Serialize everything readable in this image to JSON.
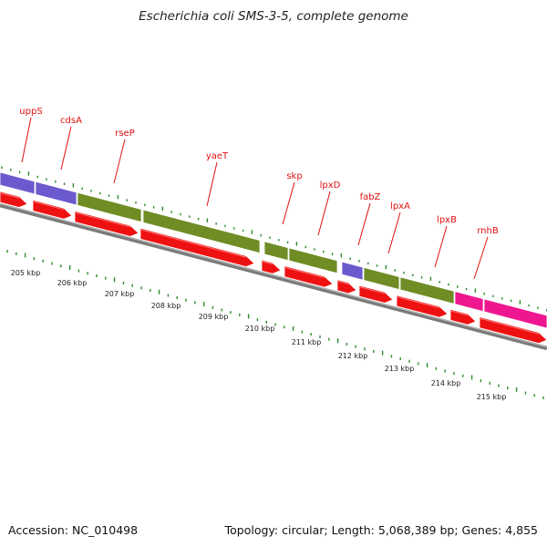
{
  "title": "Escherichia coli SMS-3-5, complete genome",
  "footer": {
    "accession": "Accession: NC_010498",
    "summary": "Topology: circular; Length: 5,068,389 bp; Genes: 4,855"
  },
  "colors": {
    "label": "#e01010",
    "green": "#6f8c25",
    "purple": "#6a5acd",
    "pink": "#ee1790",
    "red_arrow": "#ee1111",
    "backbone": "#777777",
    "tick": "#2e8b2e"
  },
  "gene_labels": [
    "uppS",
    "cdsA",
    "rseP",
    "yaeT",
    "skp",
    "lpxD",
    "fabZ",
    "lpxA",
    "lpxB",
    "rnhB"
  ],
  "kbp_labels": [
    "205 kbp",
    "206 kbp",
    "207 kbp",
    "208 kbp",
    "209 kbp",
    "210 kbp",
    "211 kbp",
    "212 kbp",
    "213 kbp",
    "214 kbp",
    "215 kbp"
  ]
}
